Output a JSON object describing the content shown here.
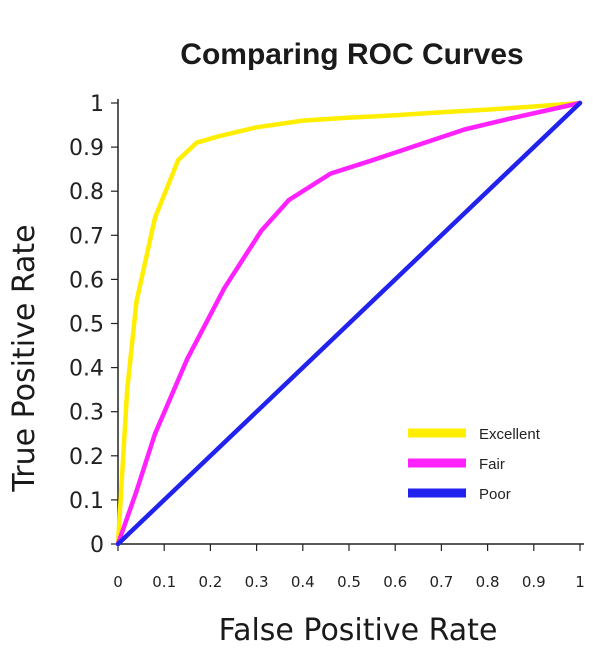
{
  "chart_data": {
    "type": "line",
    "title": "Comparing ROC Curves",
    "xlabel": "False Positive Rate",
    "ylabel": "True Positive Rate",
    "xlim": [
      0,
      1
    ],
    "ylim": [
      0,
      1
    ],
    "x_ticks": [
      "0",
      "0.1",
      "0.2",
      "0.3",
      "0.4",
      "0.5",
      "0.6",
      "0.7",
      "0.8",
      "0.9",
      "1"
    ],
    "y_ticks": [
      "0",
      "0.1",
      "0.2",
      "0.3",
      "0.4",
      "0.5",
      "0.6",
      "0.7",
      "0.8",
      "0.9",
      "1"
    ],
    "grid": false,
    "legend_position": "bottom-right",
    "series": [
      {
        "name": "Excellent",
        "color": "#ffee00",
        "x": [
          0,
          0.02,
          0.04,
          0.08,
          0.13,
          0.17,
          0.22,
          0.3,
          0.4,
          0.5,
          0.6,
          0.7,
          0.8,
          0.9,
          1
        ],
        "y": [
          0,
          0.35,
          0.55,
          0.74,
          0.87,
          0.91,
          0.925,
          0.945,
          0.96,
          0.967,
          0.972,
          0.979,
          0.985,
          0.992,
          1
        ]
      },
      {
        "name": "Fair",
        "color": "#ff22ff",
        "x": [
          0,
          0.04,
          0.08,
          0.15,
          0.23,
          0.31,
          0.37,
          0.46,
          0.55,
          0.65,
          0.75,
          0.85,
          1
        ],
        "y": [
          0,
          0.12,
          0.25,
          0.42,
          0.58,
          0.71,
          0.78,
          0.84,
          0.87,
          0.905,
          0.94,
          0.965,
          1
        ]
      },
      {
        "name": "Poor",
        "color": "#2222ee",
        "x": [
          0,
          1
        ],
        "y": [
          0,
          1
        ]
      }
    ]
  }
}
